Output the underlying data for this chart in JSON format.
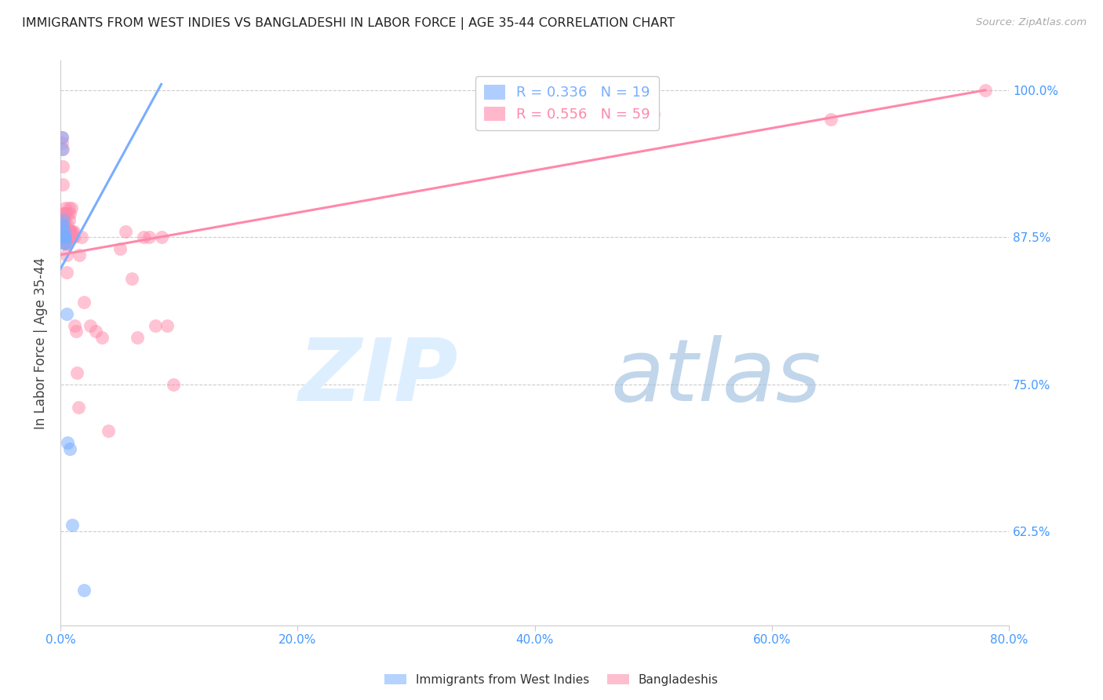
{
  "title": "IMMIGRANTS FROM WEST INDIES VS BANGLADESHI IN LABOR FORCE | AGE 35-44 CORRELATION CHART",
  "source": "Source: ZipAtlas.com",
  "ylabel": "In Labor Force | Age 35-44",
  "xlim": [
    0.0,
    0.8
  ],
  "ylim": [
    0.545,
    1.025
  ],
  "yticks": [
    0.625,
    0.75,
    0.875,
    1.0
  ],
  "ytick_labels": [
    "62.5%",
    "75.0%",
    "87.5%",
    "100.0%"
  ],
  "xticks": [
    0.0,
    0.2,
    0.4,
    0.6,
    0.8
  ],
  "xtick_labels": [
    "0.0%",
    "20.0%",
    "40.0%",
    "60.0%",
    "80.0%"
  ],
  "legend_label_blue": "Immigrants from West Indies",
  "legend_label_pink": "Bangladeshis",
  "blue_color": "#7aadff",
  "pink_color": "#ff88aa",
  "tick_color": "#4499ff",
  "grid_color": "#cccccc",
  "west_indies_x": [
    0.001,
    0.001,
    0.001,
    0.002,
    0.002,
    0.002,
    0.002,
    0.003,
    0.003,
    0.003,
    0.003,
    0.003,
    0.004,
    0.004,
    0.005,
    0.006,
    0.008,
    0.01,
    0.02
  ],
  "west_indies_y": [
    0.96,
    0.95,
    0.885,
    0.89,
    0.885,
    0.878,
    0.875,
    0.88,
    0.875,
    0.875,
    0.875,
    0.87,
    0.875,
    0.87,
    0.81,
    0.7,
    0.695,
    0.63,
    0.575
  ],
  "bangladeshi_x": [
    0.001,
    0.001,
    0.002,
    0.002,
    0.002,
    0.002,
    0.003,
    0.003,
    0.003,
    0.003,
    0.003,
    0.004,
    0.004,
    0.004,
    0.004,
    0.005,
    0.005,
    0.005,
    0.005,
    0.005,
    0.006,
    0.006,
    0.006,
    0.006,
    0.007,
    0.007,
    0.007,
    0.007,
    0.008,
    0.008,
    0.008,
    0.009,
    0.009,
    0.01,
    0.01,
    0.011,
    0.011,
    0.012,
    0.013,
    0.014,
    0.015,
    0.016,
    0.018,
    0.02,
    0.025,
    0.03,
    0.035,
    0.04,
    0.05,
    0.055,
    0.06,
    0.065,
    0.07,
    0.075,
    0.08,
    0.085,
    0.09,
    0.095,
    0.5,
    0.65,
    0.78
  ],
  "bangladeshi_y": [
    0.96,
    0.955,
    0.95,
    0.935,
    0.92,
    0.895,
    0.895,
    0.89,
    0.885,
    0.878,
    0.87,
    0.9,
    0.895,
    0.885,
    0.875,
    0.88,
    0.875,
    0.87,
    0.86,
    0.845,
    0.895,
    0.885,
    0.875,
    0.87,
    0.9,
    0.89,
    0.88,
    0.875,
    0.895,
    0.88,
    0.875,
    0.9,
    0.88,
    0.88,
    0.875,
    0.88,
    0.875,
    0.8,
    0.795,
    0.76,
    0.73,
    0.86,
    0.875,
    0.82,
    0.8,
    0.795,
    0.79,
    0.71,
    0.865,
    0.88,
    0.84,
    0.79,
    0.875,
    0.875,
    0.8,
    0.875,
    0.8,
    0.75,
    0.98,
    0.975,
    1.0
  ],
  "blue_line_x": [
    0.0,
    0.085
  ],
  "blue_line_y": [
    0.848,
    1.005
  ],
  "pink_line_x": [
    0.0,
    0.78
  ],
  "pink_line_y": [
    0.86,
    1.0
  ]
}
